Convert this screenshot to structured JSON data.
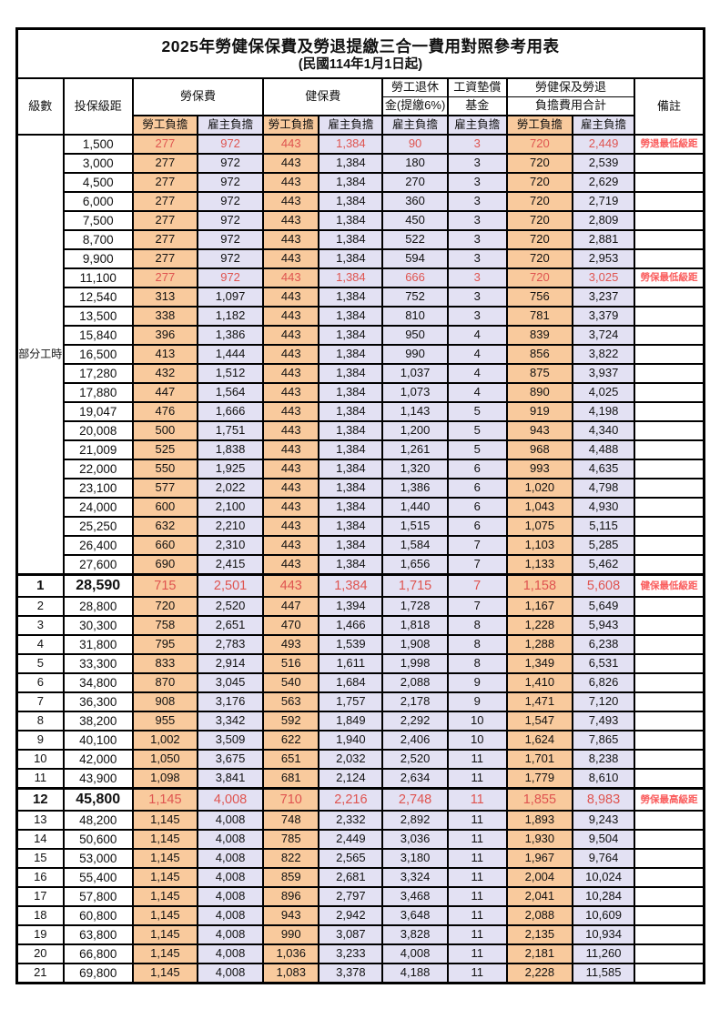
{
  "title": "2025年勞健保保費及勞退提繳三合一費用對照參考用表",
  "subtitle": "(民國114年1月1日起)",
  "header": {
    "level": "級數",
    "bracket": "投保級距",
    "labor_fee": "勞保費",
    "health_fee": "健保費",
    "pension_line1": "勞工退休",
    "pension_line2": "金(提繳6%)",
    "fund_line1": "工資墊償",
    "fund_line2": "基金",
    "total_line1": "勞健保及勞退",
    "total_line2": "負擔費用合計",
    "employee": "勞工負擔",
    "employer": "雇主負擔",
    "remark": "備註"
  },
  "column_types": [
    "employee",
    "employer",
    "employee",
    "employer",
    "employer",
    "employer",
    "employee",
    "employer"
  ],
  "part_time": {
    "label": "部分工時",
    "row_count": 23
  },
  "colors": {
    "employee_bg": "#f9ca9d",
    "employer_bg": "#e3e1f3",
    "red_value": "#df5450",
    "red_remark": "#fa5c5c",
    "border": "#000000"
  },
  "rows": [
    {
      "level": "",
      "bracket": "1,500",
      "values": [
        "277",
        "972",
        "443",
        "1,384",
        "90",
        "3",
        "720",
        "2,449"
      ],
      "remark": "勞退最低級距",
      "red": true
    },
    {
      "level": "",
      "bracket": "3,000",
      "values": [
        "277",
        "972",
        "443",
        "1,384",
        "180",
        "3",
        "720",
        "2,539"
      ],
      "remark": ""
    },
    {
      "level": "",
      "bracket": "4,500",
      "values": [
        "277",
        "972",
        "443",
        "1,384",
        "270",
        "3",
        "720",
        "2,629"
      ],
      "remark": ""
    },
    {
      "level": "",
      "bracket": "6,000",
      "values": [
        "277",
        "972",
        "443",
        "1,384",
        "360",
        "3",
        "720",
        "2,719"
      ],
      "remark": ""
    },
    {
      "level": "",
      "bracket": "7,500",
      "values": [
        "277",
        "972",
        "443",
        "1,384",
        "450",
        "3",
        "720",
        "2,809"
      ],
      "remark": ""
    },
    {
      "level": "",
      "bracket": "8,700",
      "values": [
        "277",
        "972",
        "443",
        "1,384",
        "522",
        "3",
        "720",
        "2,881"
      ],
      "remark": ""
    },
    {
      "level": "",
      "bracket": "9,900",
      "values": [
        "277",
        "972",
        "443",
        "1,384",
        "594",
        "3",
        "720",
        "2,953"
      ],
      "remark": ""
    },
    {
      "level": "",
      "bracket": "11,100",
      "values": [
        "277",
        "972",
        "443",
        "1,384",
        "666",
        "3",
        "720",
        "3,025"
      ],
      "remark": "勞保最低級距",
      "red": true
    },
    {
      "level": "",
      "bracket": "12,540",
      "values": [
        "313",
        "1,097",
        "443",
        "1,384",
        "752",
        "3",
        "756",
        "3,237"
      ],
      "remark": ""
    },
    {
      "level": "",
      "bracket": "13,500",
      "values": [
        "338",
        "1,182",
        "443",
        "1,384",
        "810",
        "3",
        "781",
        "3,379"
      ],
      "remark": ""
    },
    {
      "level": "",
      "bracket": "15,840",
      "values": [
        "396",
        "1,386",
        "443",
        "1,384",
        "950",
        "4",
        "839",
        "3,724"
      ],
      "remark": ""
    },
    {
      "level": "",
      "bracket": "16,500",
      "values": [
        "413",
        "1,444",
        "443",
        "1,384",
        "990",
        "4",
        "856",
        "3,822"
      ],
      "remark": ""
    },
    {
      "level": "",
      "bracket": "17,280",
      "values": [
        "432",
        "1,512",
        "443",
        "1,384",
        "1,037",
        "4",
        "875",
        "3,937"
      ],
      "remark": ""
    },
    {
      "level": "",
      "bracket": "17,880",
      "values": [
        "447",
        "1,564",
        "443",
        "1,384",
        "1,073",
        "4",
        "890",
        "4,025"
      ],
      "remark": ""
    },
    {
      "level": "",
      "bracket": "19,047",
      "values": [
        "476",
        "1,666",
        "443",
        "1,384",
        "1,143",
        "5",
        "919",
        "4,198"
      ],
      "remark": ""
    },
    {
      "level": "",
      "bracket": "20,008",
      "values": [
        "500",
        "1,751",
        "443",
        "1,384",
        "1,200",
        "5",
        "943",
        "4,340"
      ],
      "remark": ""
    },
    {
      "level": "",
      "bracket": "21,009",
      "values": [
        "525",
        "1,838",
        "443",
        "1,384",
        "1,261",
        "5",
        "968",
        "4,488"
      ],
      "remark": ""
    },
    {
      "level": "",
      "bracket": "22,000",
      "values": [
        "550",
        "1,925",
        "443",
        "1,384",
        "1,320",
        "6",
        "993",
        "4,635"
      ],
      "remark": ""
    },
    {
      "level": "",
      "bracket": "23,100",
      "values": [
        "577",
        "2,022",
        "443",
        "1,384",
        "1,386",
        "6",
        "1,020",
        "4,798"
      ],
      "remark": ""
    },
    {
      "level": "",
      "bracket": "24,000",
      "values": [
        "600",
        "2,100",
        "443",
        "1,384",
        "1,440",
        "6",
        "1,043",
        "4,930"
      ],
      "remark": ""
    },
    {
      "level": "",
      "bracket": "25,250",
      "values": [
        "632",
        "2,210",
        "443",
        "1,384",
        "1,515",
        "6",
        "1,075",
        "5,115"
      ],
      "remark": ""
    },
    {
      "level": "",
      "bracket": "26,400",
      "values": [
        "660",
        "2,310",
        "443",
        "1,384",
        "1,584",
        "7",
        "1,103",
        "5,285"
      ],
      "remark": ""
    },
    {
      "level": "",
      "bracket": "27,600",
      "values": [
        "690",
        "2,415",
        "443",
        "1,384",
        "1,656",
        "7",
        "1,133",
        "5,462"
      ],
      "remark": ""
    },
    {
      "level": "1",
      "bracket": "28,590",
      "values": [
        "715",
        "2,501",
        "443",
        "1,384",
        "1,715",
        "7",
        "1,158",
        "5,608"
      ],
      "remark": "健保最低級距",
      "red": true,
      "key": true
    },
    {
      "level": "2",
      "bracket": "28,800",
      "values": [
        "720",
        "2,520",
        "447",
        "1,394",
        "1,728",
        "7",
        "1,167",
        "5,649"
      ],
      "remark": ""
    },
    {
      "level": "3",
      "bracket": "30,300",
      "values": [
        "758",
        "2,651",
        "470",
        "1,466",
        "1,818",
        "8",
        "1,228",
        "5,943"
      ],
      "remark": ""
    },
    {
      "level": "4",
      "bracket": "31,800",
      "values": [
        "795",
        "2,783",
        "493",
        "1,539",
        "1,908",
        "8",
        "1,288",
        "6,238"
      ],
      "remark": ""
    },
    {
      "level": "5",
      "bracket": "33,300",
      "values": [
        "833",
        "2,914",
        "516",
        "1,611",
        "1,998",
        "8",
        "1,349",
        "6,531"
      ],
      "remark": ""
    },
    {
      "level": "6",
      "bracket": "34,800",
      "values": [
        "870",
        "3,045",
        "540",
        "1,684",
        "2,088",
        "9",
        "1,410",
        "6,826"
      ],
      "remark": ""
    },
    {
      "level": "7",
      "bracket": "36,300",
      "values": [
        "908",
        "3,176",
        "563",
        "1,757",
        "2,178",
        "9",
        "1,471",
        "7,120"
      ],
      "remark": ""
    },
    {
      "level": "8",
      "bracket": "38,200",
      "values": [
        "955",
        "3,342",
        "592",
        "1,849",
        "2,292",
        "10",
        "1,547",
        "7,493"
      ],
      "remark": ""
    },
    {
      "level": "9",
      "bracket": "40,100",
      "values": [
        "1,002",
        "3,509",
        "622",
        "1,940",
        "2,406",
        "10",
        "1,624",
        "7,865"
      ],
      "remark": ""
    },
    {
      "level": "10",
      "bracket": "42,000",
      "values": [
        "1,050",
        "3,675",
        "651",
        "2,032",
        "2,520",
        "11",
        "1,701",
        "8,238"
      ],
      "remark": ""
    },
    {
      "level": "11",
      "bracket": "43,900",
      "values": [
        "1,098",
        "3,841",
        "681",
        "2,124",
        "2,634",
        "11",
        "1,779",
        "8,610"
      ],
      "remark": ""
    },
    {
      "level": "12",
      "bracket": "45,800",
      "values": [
        "1,145",
        "4,008",
        "710",
        "2,216",
        "2,748",
        "11",
        "1,855",
        "8,983"
      ],
      "remark": "勞保最高級距",
      "red": true,
      "key": true
    },
    {
      "level": "13",
      "bracket": "48,200",
      "values": [
        "1,145",
        "4,008",
        "748",
        "2,332",
        "2,892",
        "11",
        "1,893",
        "9,243"
      ],
      "remark": ""
    },
    {
      "level": "14",
      "bracket": "50,600",
      "values": [
        "1,145",
        "4,008",
        "785",
        "2,449",
        "3,036",
        "11",
        "1,930",
        "9,504"
      ],
      "remark": ""
    },
    {
      "level": "15",
      "bracket": "53,000",
      "values": [
        "1,145",
        "4,008",
        "822",
        "2,565",
        "3,180",
        "11",
        "1,967",
        "9,764"
      ],
      "remark": ""
    },
    {
      "level": "16",
      "bracket": "55,400",
      "values": [
        "1,145",
        "4,008",
        "859",
        "2,681",
        "3,324",
        "11",
        "2,004",
        "10,024"
      ],
      "remark": ""
    },
    {
      "level": "17",
      "bracket": "57,800",
      "values": [
        "1,145",
        "4,008",
        "896",
        "2,797",
        "3,468",
        "11",
        "2,041",
        "10,284"
      ],
      "remark": ""
    },
    {
      "level": "18",
      "bracket": "60,800",
      "values": [
        "1,145",
        "4,008",
        "943",
        "2,942",
        "3,648",
        "11",
        "2,088",
        "10,609"
      ],
      "remark": ""
    },
    {
      "level": "19",
      "bracket": "63,800",
      "values": [
        "1,145",
        "4,008",
        "990",
        "3,087",
        "3,828",
        "11",
        "2,135",
        "10,934"
      ],
      "remark": ""
    },
    {
      "level": "20",
      "bracket": "66,800",
      "values": [
        "1,145",
        "4,008",
        "1,036",
        "3,233",
        "4,008",
        "11",
        "2,181",
        "11,260"
      ],
      "remark": ""
    },
    {
      "level": "21",
      "bracket": "69,800",
      "values": [
        "1,145",
        "4,008",
        "1,083",
        "3,378",
        "4,188",
        "11",
        "2,228",
        "11,585"
      ],
      "remark": ""
    }
  ]
}
